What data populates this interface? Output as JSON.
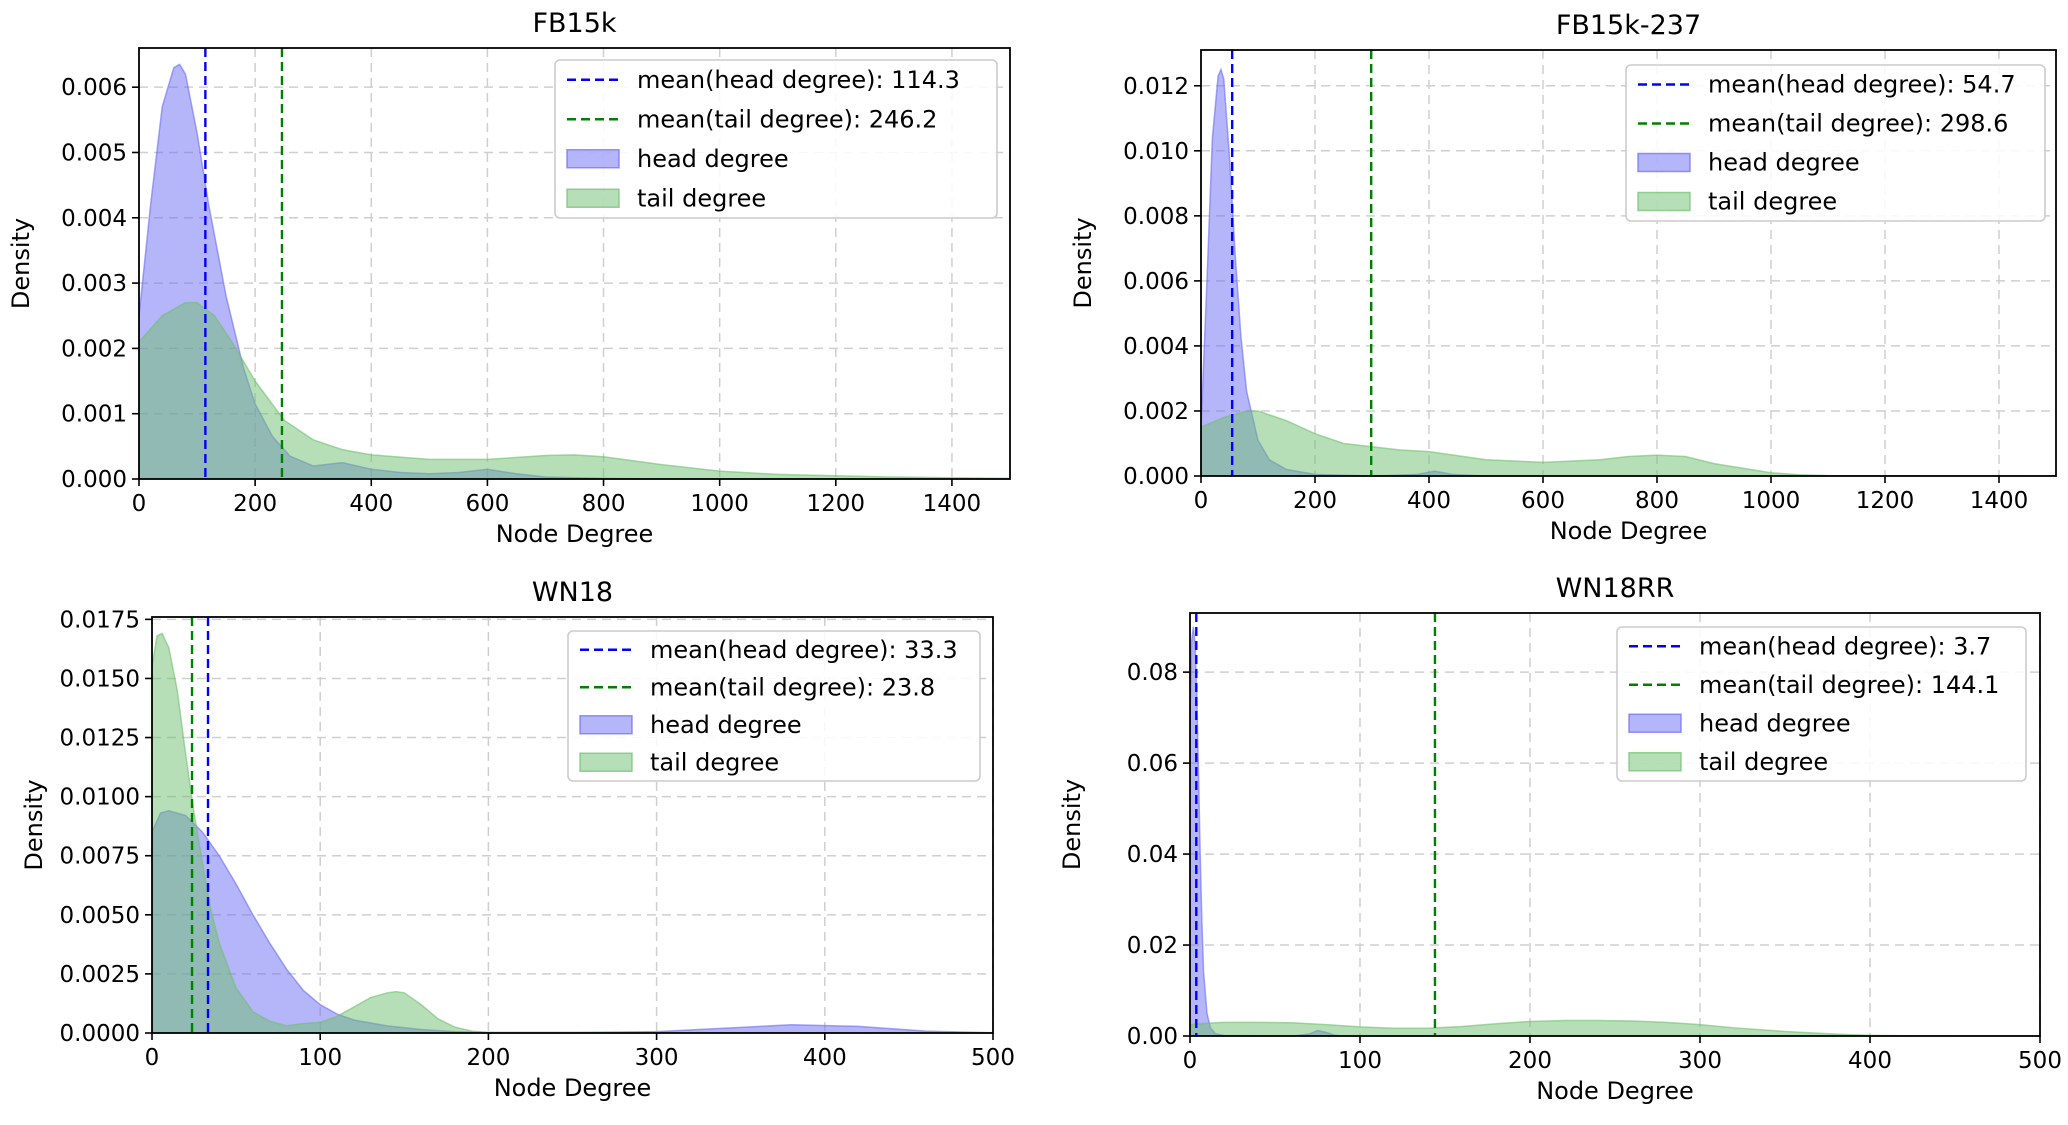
{
  "chart_data": [
    {
      "type": "area",
      "title": "FB15k",
      "xlabel": "Node Degree",
      "ylabel": "Density",
      "xlim": [
        0,
        1500
      ],
      "ylim": [
        0,
        0.0066
      ],
      "xticks": [
        0,
        200,
        400,
        600,
        800,
        1000,
        1200,
        1400
      ],
      "xtick_labels": [
        "0",
        "200",
        "400",
        "600",
        "800",
        "1000",
        "1200",
        "1400"
      ],
      "yticks": [
        0,
        0.001,
        0.002,
        0.003,
        0.004,
        0.005,
        0.006
      ],
      "ytick_labels": [
        "0.000",
        "0.001",
        "0.002",
        "0.003",
        "0.004",
        "0.005",
        "0.006"
      ],
      "grid": true,
      "legend_position": "top-right",
      "mean_lines": [
        {
          "label": "mean(head degree): 114.3",
          "value": 114.3,
          "color": "#0000ff"
        },
        {
          "label": "mean(tail degree): 246.2",
          "value": 246.2,
          "color": "#008000"
        }
      ],
      "series": [
        {
          "name": "head degree",
          "color": "#6b6bf5",
          "x": [
            0,
            20,
            40,
            60,
            70,
            80,
            100,
            120,
            150,
            180,
            200,
            230,
            260,
            300,
            350,
            400,
            450,
            500,
            550,
            600,
            650,
            700,
            800,
            900,
            1000,
            1500
          ],
          "y": [
            0.0025,
            0.0042,
            0.0057,
            0.0063,
            0.00635,
            0.0062,
            0.0053,
            0.0042,
            0.0028,
            0.0017,
            0.00115,
            0.00065,
            0.00035,
            0.0002,
            0.00025,
            0.00015,
            0.0001,
            8e-05,
            0.0001,
            0.00015,
            8e-05,
            3e-05,
            1e-05,
            0,
            0,
            0
          ]
        },
        {
          "name": "tail degree",
          "color": "#6fbf6f",
          "x": [
            0,
            40,
            80,
            100,
            130,
            160,
            200,
            250,
            300,
            350,
            400,
            500,
            600,
            700,
            750,
            800,
            900,
            1000,
            1100,
            1200,
            1300,
            1400,
            1500
          ],
          "y": [
            0.0021,
            0.0025,
            0.0027,
            0.0027,
            0.0025,
            0.0021,
            0.0015,
            0.0009,
            0.0006,
            0.00045,
            0.00037,
            0.0003,
            0.0003,
            0.00036,
            0.00037,
            0.00034,
            0.00022,
            0.00012,
            7e-05,
            5e-05,
            3e-05,
            2e-05,
            1e-05
          ]
        }
      ]
    },
    {
      "type": "area",
      "title": "FB15k-237",
      "xlabel": "Node Degree",
      "ylabel": "Density",
      "xlim": [
        0,
        1500
      ],
      "ylim": [
        0,
        0.0131
      ],
      "xticks": [
        0,
        200,
        400,
        600,
        800,
        1000,
        1200,
        1400
      ],
      "xtick_labels": [
        "0",
        "200",
        "400",
        "600",
        "800",
        "1000",
        "1200",
        "1400"
      ],
      "yticks": [
        0,
        0.002,
        0.004,
        0.006,
        0.008,
        0.01,
        0.012
      ],
      "ytick_labels": [
        "0.000",
        "0.002",
        "0.004",
        "0.006",
        "0.008",
        "0.010",
        "0.012"
      ],
      "grid": true,
      "legend_position": "top-right",
      "mean_lines": [
        {
          "label": "mean(head degree): 54.7",
          "value": 54.7,
          "color": "#0000ff"
        },
        {
          "label": "mean(tail degree): 298.6",
          "value": 298.6,
          "color": "#008000"
        }
      ],
      "series": [
        {
          "name": "head degree",
          "color": "#6b6bf5",
          "x": [
            0,
            10,
            20,
            30,
            35,
            40,
            50,
            60,
            70,
            80,
            100,
            120,
            150,
            200,
            300,
            380,
            410,
            440,
            500,
            1500
          ],
          "y": [
            0.0015,
            0.0058,
            0.0104,
            0.0123,
            0.0125,
            0.0122,
            0.0098,
            0.0068,
            0.0043,
            0.0026,
            0.0011,
            0.0005,
            0.0002,
            5e-05,
            0,
            5e-05,
            0.00015,
            5e-05,
            0,
            0
          ]
        },
        {
          "name": "tail degree",
          "color": "#6fbf6f",
          "x": [
            0,
            40,
            80,
            100,
            150,
            200,
            250,
            300,
            350,
            400,
            500,
            600,
            700,
            750,
            800,
            850,
            900,
            1000,
            1050,
            1100,
            1500
          ],
          "y": [
            0.0015,
            0.0018,
            0.002,
            0.002,
            0.0017,
            0.0013,
            0.001,
            0.0009,
            0.0008,
            0.00075,
            0.0005,
            0.00042,
            0.0005,
            0.0006,
            0.00064,
            0.0006,
            0.00038,
            0.0001,
            4e-05,
            1e-05,
            0
          ]
        }
      ]
    },
    {
      "type": "area",
      "title": "WN18",
      "xlabel": "Node Degree",
      "ylabel": "Density",
      "xlim": [
        0,
        500
      ],
      "ylim": [
        0,
        0.0176
      ],
      "xticks": [
        0,
        100,
        200,
        300,
        400,
        500
      ],
      "xtick_labels": [
        "0",
        "100",
        "200",
        "300",
        "400",
        "500"
      ],
      "yticks": [
        0,
        0.0025,
        0.005,
        0.0075,
        0.01,
        0.0125,
        0.015,
        0.0175
      ],
      "ytick_labels": [
        "0.0000",
        "0.0025",
        "0.0050",
        "0.0075",
        "0.0100",
        "0.0125",
        "0.0150",
        "0.0175"
      ],
      "grid": true,
      "legend_position": "top-right",
      "mean_lines": [
        {
          "label": "mean(head degree): 33.3",
          "value": 33.3,
          "color": "#0000ff"
        },
        {
          "label": "mean(tail degree): 23.8",
          "value": 23.8,
          "color": "#008000"
        }
      ],
      "series": [
        {
          "name": "head degree",
          "color": "#6b6bf5",
          "x": [
            0,
            5,
            10,
            20,
            30,
            40,
            50,
            60,
            70,
            80,
            90,
            100,
            110,
            120,
            140,
            160,
            180,
            200,
            250,
            300,
            340,
            380,
            420,
            460,
            500
          ],
          "y": [
            0.0085,
            0.0093,
            0.0094,
            0.0092,
            0.0085,
            0.0075,
            0.0063,
            0.005,
            0.0038,
            0.0027,
            0.0018,
            0.0012,
            0.0008,
            0.00055,
            0.0003,
            0.00015,
            6e-05,
            2e-05,
            2e-05,
            6e-05,
            0.0002,
            0.00035,
            0.00028,
            8e-05,
            1e-05
          ]
        },
        {
          "name": "tail degree",
          "color": "#6fbf6f",
          "x": [
            0,
            3,
            6,
            10,
            15,
            20,
            25,
            30,
            35,
            40,
            50,
            60,
            70,
            80,
            90,
            100,
            110,
            120,
            130,
            140,
            145,
            150,
            160,
            170,
            180,
            190,
            200,
            500
          ],
          "y": [
            0.0155,
            0.0168,
            0.0169,
            0.0163,
            0.0145,
            0.0118,
            0.0093,
            0.0072,
            0.0052,
            0.0038,
            0.0019,
            0.0009,
            0.0005,
            0.0003,
            0.0004,
            0.00045,
            0.0007,
            0.0011,
            0.0015,
            0.0017,
            0.00175,
            0.0017,
            0.0012,
            0.0006,
            0.00025,
            8e-05,
            2e-05,
            0
          ]
        }
      ]
    },
    {
      "type": "area",
      "title": "WN18RR",
      "xlabel": "Node Degree",
      "ylabel": "Density",
      "xlim": [
        0,
        500
      ],
      "ylim": [
        0,
        0.093
      ],
      "xticks": [
        0,
        100,
        200,
        300,
        400,
        500
      ],
      "xtick_labels": [
        "0",
        "100",
        "200",
        "300",
        "400",
        "500"
      ],
      "yticks": [
        0,
        0.02,
        0.04,
        0.06,
        0.08
      ],
      "ytick_labels": [
        "0.00",
        "0.02",
        "0.04",
        "0.06",
        "0.08"
      ],
      "grid": true,
      "legend_position": "top-right",
      "mean_lines": [
        {
          "label": "mean(head degree): 3.7",
          "value": 3.7,
          "color": "#0000ff"
        },
        {
          "label": "mean(tail degree): 144.1",
          "value": 144.1,
          "color": "#008000"
        }
      ],
      "series": [
        {
          "name": "head degree",
          "color": "#6b6bf5",
          "x": [
            0,
            1,
            2,
            3,
            4,
            5,
            6,
            7,
            8,
            10,
            12,
            15,
            20,
            60,
            70,
            75,
            80,
            85,
            90,
            500
          ],
          "y": [
            0.07,
            0.087,
            0.09,
            0.086,
            0.075,
            0.058,
            0.04,
            0.025,
            0.014,
            0.005,
            0.0018,
            0.0005,
            0.0001,
            0,
            0.0004,
            0.0012,
            0.0008,
            0.0002,
            0,
            0
          ]
        },
        {
          "name": "tail degree",
          "color": "#6fbf6f",
          "x": [
            0,
            10,
            20,
            40,
            60,
            80,
            100,
            120,
            140,
            160,
            180,
            200,
            220,
            240,
            260,
            280,
            300,
            320,
            350,
            380,
            400,
            420,
            450,
            500
          ],
          "y": [
            0.0025,
            0.0028,
            0.003,
            0.003,
            0.0029,
            0.0025,
            0.002,
            0.0017,
            0.0017,
            0.0021,
            0.0027,
            0.0032,
            0.0034,
            0.0034,
            0.0033,
            0.003,
            0.0025,
            0.0018,
            0.001,
            0.0004,
            0.00015,
            5e-05,
            1e-05,
            0
          ]
        }
      ]
    }
  ]
}
